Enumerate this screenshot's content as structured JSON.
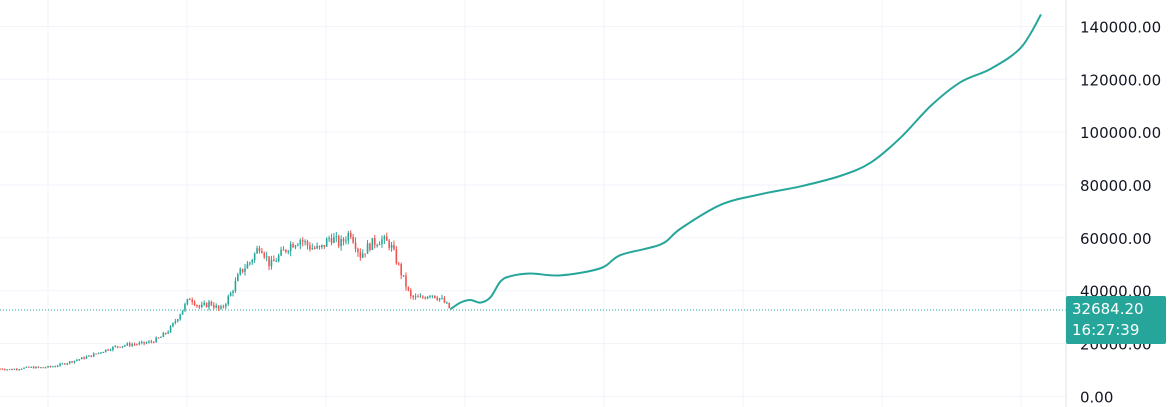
{
  "colors": {
    "grid": "#f0f3fa",
    "up": "#26a69a",
    "down": "#ef5350",
    "projection": "#26a69a",
    "price_line": "#26a69a",
    "axis_text": "#131722"
  },
  "price_badge": {
    "price": "32684.20",
    "countdown": "16:27:39"
  },
  "chart_data": {
    "type": "line",
    "y_axis": {
      "side": "right",
      "ticks": [
        "140000.00",
        "120000.00",
        "100000.00",
        "80000.00",
        "60000.00",
        "40000.00",
        "20000.00",
        "0.00"
      ],
      "tick_values": [
        140000,
        120000,
        100000,
        80000,
        60000,
        40000,
        20000,
        0
      ],
      "range": [
        -4000,
        150000
      ]
    },
    "x_axis": {
      "ticks": [],
      "range": [
        0,
        1065
      ]
    },
    "grid": true,
    "current_price": 32684.2,
    "series": [
      {
        "kind": "candlestick",
        "x": [
          0,
          10,
          20,
          30,
          40,
          50,
          60,
          70,
          80,
          90,
          100,
          110,
          120,
          130,
          140,
          150,
          160,
          170,
          180,
          190,
          200,
          210,
          220,
          230,
          240,
          250,
          260,
          270,
          280,
          290,
          300,
          310,
          320,
          330,
          340,
          350,
          360,
          370,
          380,
          390,
          400,
          410,
          420,
          430,
          440,
          450
        ],
        "values": [
          10500,
          10200,
          10600,
          11000,
          10900,
          11200,
          12000,
          13100,
          14200,
          15300,
          16800,
          18200,
          19200,
          19700,
          19900,
          20500,
          22200,
          25500,
          31500,
          37500,
          33500,
          35500,
          32500,
          38500,
          47000,
          51000,
          57500,
          49500,
          53500,
          57500,
          59500,
          56500,
          55500,
          60500,
          57500,
          62500,
          53500,
          57500,
          59500,
          57500,
          47500,
          37500,
          37000,
          39000,
          37000,
          33000
        ]
      },
      {
        "kind": "projection",
        "x": [
          450,
          460,
          470,
          480,
          490,
          500,
          510,
          530,
          560,
          600,
          620,
          660,
          680,
          720,
          760,
          800,
          840,
          870,
          900,
          930,
          960,
          990,
          1020,
          1040
        ],
        "values": [
          33000,
          35500,
          36500,
          35500,
          37500,
          43500,
          45500,
          46500,
          45800,
          48500,
          53500,
          57500,
          63500,
          72500,
          76500,
          79500,
          83500,
          88500,
          98000,
          110000,
          119000,
          124000,
          132000,
          144500
        ]
      }
    ]
  }
}
